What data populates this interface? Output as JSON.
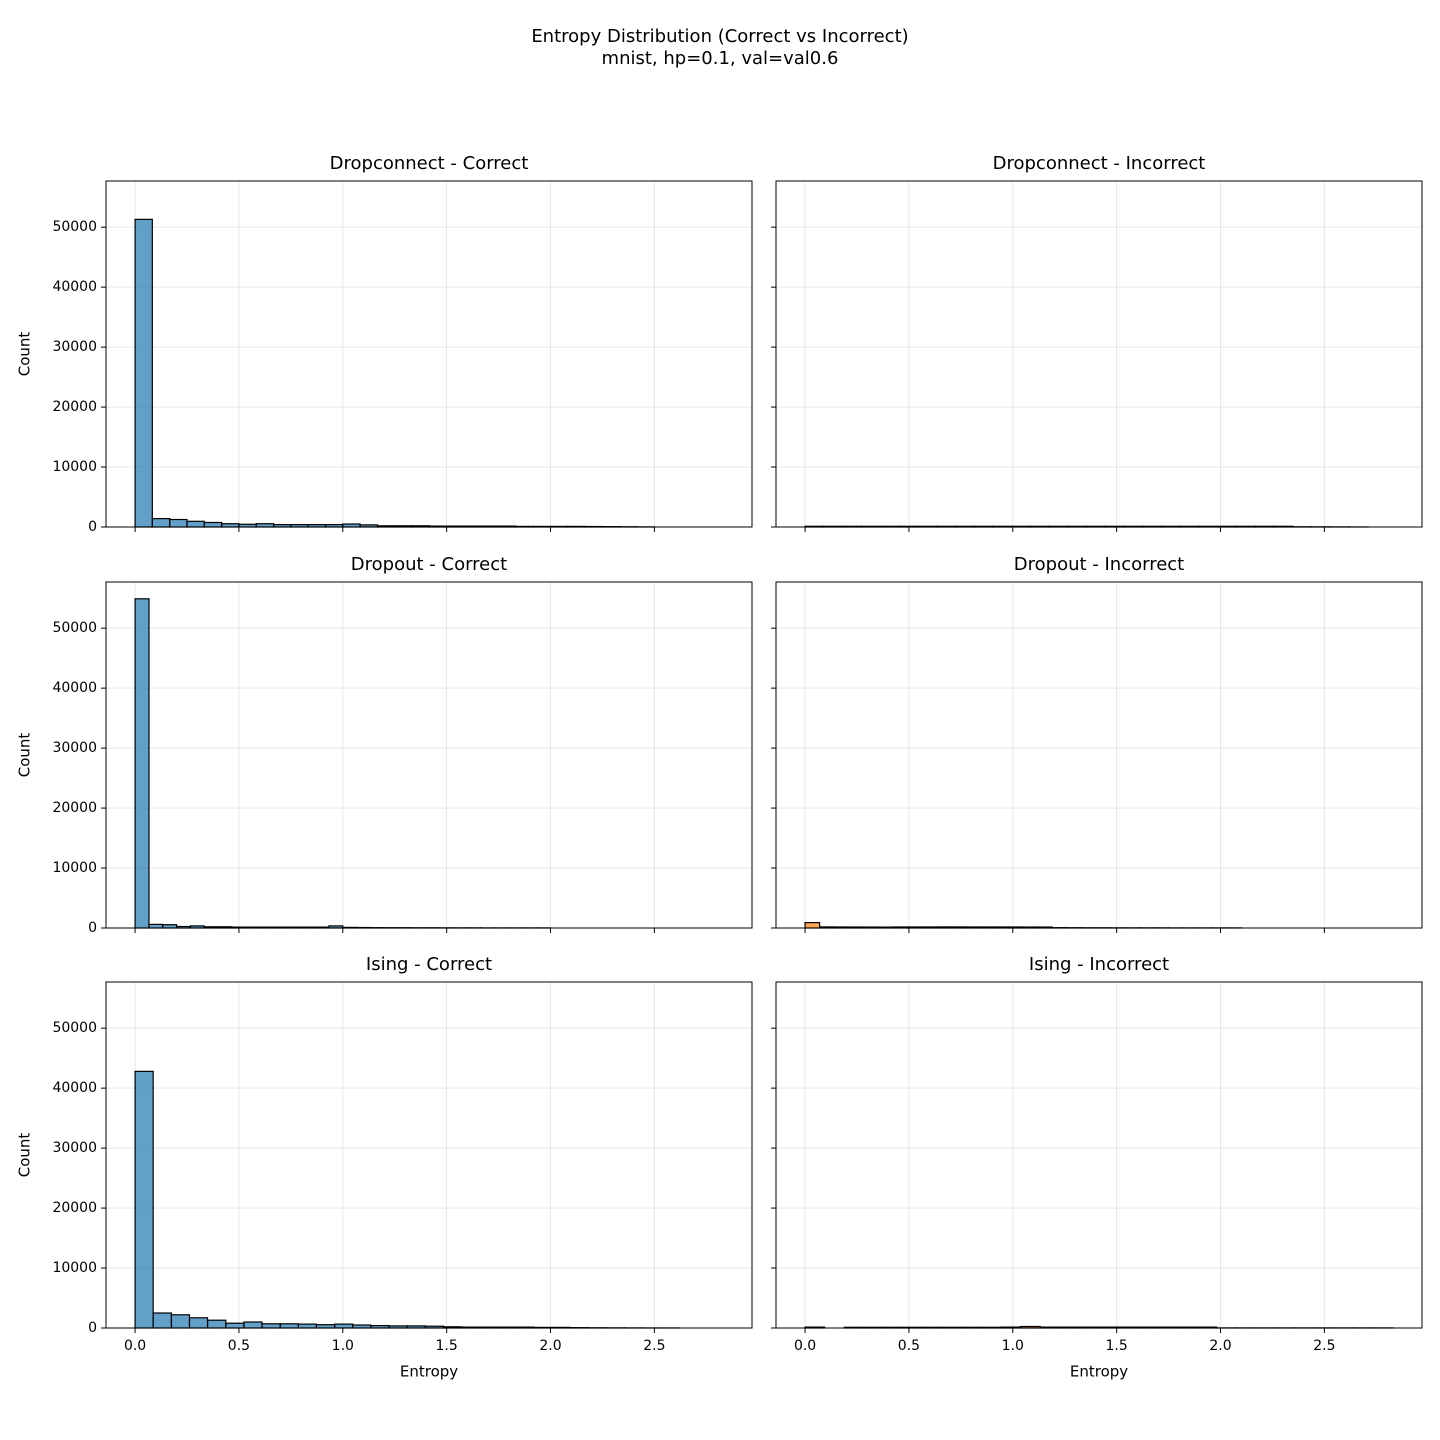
{
  "title": "Entropy Distribution (Correct vs Incorrect)",
  "subtitle": "mnist, hp=0.1, val=val0.6",
  "chart_data": [
    {
      "type": "histogram",
      "title": "Dropconnect - Correct",
      "ylabel": "Count",
      "color": "#1f77b4",
      "bins": [
        0,
        0.083,
        0.167,
        0.25,
        0.333,
        0.417,
        0.5,
        0.583,
        0.667,
        0.75,
        0.833,
        0.917,
        1.0,
        1.083,
        1.167,
        1.25,
        1.333,
        1.417,
        1.5,
        1.583,
        1.667,
        1.75,
        1.833,
        1.917,
        2.0,
        2.083,
        2.167,
        2.25,
        2.333,
        2.417,
        2.5
      ],
      "values": [
        51300,
        1400,
        1250,
        950,
        750,
        550,
        450,
        550,
        400,
        400,
        400,
        400,
        500,
        350,
        200,
        200,
        200,
        150,
        150,
        150,
        150,
        150,
        100,
        100,
        100,
        100,
        80,
        60,
        40,
        20
      ],
      "xlim": [
        -0.14,
        2.97
      ],
      "ylim": [
        0,
        57700
      ],
      "xticks": [
        {
          "value": 0,
          "label": "0.0"
        },
        0.5,
        {
          "value": 1,
          "label": "1.0"
        },
        1.5,
        {
          "value": 2,
          "label": "2.0"
        },
        2.5
      ],
      "yticks": [
        0,
        10000,
        20000,
        30000,
        40000,
        50000
      ],
      "grid": true,
      "xtick_labels": false,
      "ytick_labels": true
    },
    {
      "type": "histogram",
      "title": "Dropconnect - Incorrect",
      "color": "#ff7f0e",
      "bins": [
        0,
        0.09,
        0.181,
        0.271,
        0.361,
        0.452,
        0.542,
        0.632,
        0.723,
        0.813,
        0.903,
        0.994,
        1.084,
        1.174,
        1.265,
        1.355,
        1.445,
        1.536,
        1.626,
        1.716,
        1.807,
        1.897,
        1.987,
        2.078,
        2.168,
        2.258,
        2.349,
        2.439,
        2.529,
        2.62,
        2.71
      ],
      "values": [
        120,
        120,
        120,
        120,
        120,
        120,
        120,
        120,
        120,
        120,
        120,
        120,
        120,
        120,
        120,
        120,
        120,
        120,
        120,
        120,
        120,
        120,
        120,
        120,
        120,
        120,
        40,
        30,
        20,
        10
      ],
      "xlim": [
        -0.14,
        2.97
      ],
      "ylim": [
        0,
        57700
      ],
      "xticks": [
        {
          "value": 0,
          "label": "0.0"
        },
        0.5,
        {
          "value": 1,
          "label": "1.0"
        },
        1.5,
        {
          "value": 2,
          "label": "2.0"
        },
        2.5
      ],
      "yticks": [
        0,
        10000,
        20000,
        30000,
        40000,
        50000
      ],
      "grid": true,
      "xtick_labels": false,
      "ytick_labels": false
    },
    {
      "type": "histogram",
      "title": "Dropout - Correct",
      "ylabel": "Count",
      "color": "#1f77b4",
      "bins": [
        0,
        0.067,
        0.133,
        0.2,
        0.267,
        0.333,
        0.4,
        0.467,
        0.533,
        0.6,
        0.667,
        0.733,
        0.8,
        0.867,
        0.933,
        1.0,
        1.067,
        1.133,
        1.2,
        1.267,
        1.333,
        1.4,
        1.467,
        1.533,
        1.6,
        1.667,
        1.733,
        1.8,
        1.867,
        1.933,
        2.0
      ],
      "values": [
        54900,
        600,
        550,
        250,
        350,
        200,
        200,
        150,
        150,
        150,
        150,
        150,
        150,
        150,
        350,
        100,
        80,
        60,
        50,
        50,
        40,
        40,
        30,
        30,
        30,
        20,
        20,
        20,
        20,
        20
      ],
      "xlim": [
        -0.14,
        2.97
      ],
      "ylim": [
        0,
        57700
      ],
      "xticks": [
        {
          "value": 0,
          "label": "0.0"
        },
        0.5,
        {
          "value": 1,
          "label": "1.0"
        },
        1.5,
        {
          "value": 2,
          "label": "2.0"
        },
        2.5
      ],
      "yticks": [
        0,
        10000,
        20000,
        30000,
        40000,
        50000
      ],
      "grid": true,
      "xtick_labels": false,
      "ytick_labels": true
    },
    {
      "type": "histogram",
      "title": "Dropout - Incorrect",
      "color": "#ff7f0e",
      "bins": [
        0,
        0.07,
        0.14,
        0.21,
        0.28,
        0.35,
        0.42,
        0.49,
        0.56,
        0.63,
        0.7,
        0.77,
        0.84,
        0.91,
        0.98,
        1.05,
        1.12,
        1.19,
        1.26,
        1.33,
        1.4,
        1.47,
        1.54,
        1.61,
        1.68,
        1.75,
        1.82,
        1.89,
        1.96,
        2.03,
        2.1
      ],
      "values": [
        900,
        180,
        170,
        160,
        160,
        150,
        170,
        170,
        170,
        180,
        180,
        170,
        170,
        170,
        170,
        160,
        160,
        60,
        50,
        40,
        40,
        30,
        30,
        30,
        30,
        20,
        20,
        20,
        20,
        20
      ],
      "xlim": [
        -0.14,
        2.97
      ],
      "ylim": [
        0,
        57700
      ],
      "xticks": [
        {
          "value": 0,
          "label": "0.0"
        },
        0.5,
        {
          "value": 1,
          "label": "1.0"
        },
        1.5,
        {
          "value": 2,
          "label": "2.0"
        },
        2.5
      ],
      "yticks": [
        0,
        10000,
        20000,
        30000,
        40000,
        50000
      ],
      "grid": true,
      "xtick_labels": false,
      "ytick_labels": false
    },
    {
      "type": "histogram",
      "title": "Ising - Correct",
      "xlabel": "Entropy",
      "ylabel": "Count",
      "color": "#1f77b4",
      "bins": [
        0,
        0.087,
        0.175,
        0.262,
        0.349,
        0.437,
        0.524,
        0.611,
        0.699,
        0.786,
        0.873,
        0.961,
        1.048,
        1.135,
        1.223,
        1.31,
        1.397,
        1.485,
        1.572,
        1.659,
        1.747,
        1.834,
        1.921,
        2.009,
        2.096,
        2.183,
        2.271,
        2.358,
        2.445,
        2.533,
        2.62
      ],
      "values": [
        42800,
        2500,
        2200,
        1700,
        1300,
        800,
        1000,
        700,
        700,
        650,
        550,
        650,
        500,
        400,
        350,
        350,
        300,
        200,
        150,
        150,
        150,
        150,
        100,
        100,
        60,
        40,
        30,
        20,
        10,
        10
      ],
      "xlim": [
        -0.14,
        2.97
      ],
      "ylim": [
        0,
        57700
      ],
      "xticks": [
        {
          "value": 0,
          "label": "0.0"
        },
        0.5,
        {
          "value": 1,
          "label": "1.0"
        },
        1.5,
        {
          "value": 2,
          "label": "2.0"
        },
        2.5
      ],
      "yticks": [
        0,
        10000,
        20000,
        30000,
        40000,
        50000
      ],
      "grid": true,
      "xtick_labels": true,
      "ytick_labels": true
    },
    {
      "type": "histogram",
      "title": "Ising - Incorrect",
      "xlabel": "Entropy",
      "color": "#ff7f0e",
      "bins": [
        0,
        0.094,
        0.189,
        0.283,
        0.377,
        0.472,
        0.566,
        0.66,
        0.755,
        0.849,
        0.943,
        1.038,
        1.132,
        1.226,
        1.321,
        1.415,
        1.509,
        1.604,
        1.698,
        1.792,
        1.887,
        1.981,
        2.075,
        2.17,
        2.264,
        2.358,
        2.453,
        2.547,
        2.641,
        2.736,
        2.83
      ],
      "values": [
        150,
        0,
        120,
        120,
        120,
        120,
        120,
        120,
        120,
        120,
        150,
        250,
        150,
        150,
        150,
        150,
        150,
        150,
        150,
        150,
        150,
        20,
        20,
        20,
        20,
        20,
        20,
        20,
        20,
        20
      ],
      "xlim": [
        -0.14,
        2.97
      ],
      "ylim": [
        0,
        57700
      ],
      "xticks": [
        {
          "value": 0,
          "label": "0.0"
        },
        0.5,
        {
          "value": 1,
          "label": "1.0"
        },
        1.5,
        {
          "value": 2,
          "label": "2.0"
        },
        2.5
      ],
      "yticks": [
        0,
        10000,
        20000,
        30000,
        40000,
        50000
      ],
      "grid": true,
      "xtick_labels": true,
      "ytick_labels": false
    }
  ]
}
